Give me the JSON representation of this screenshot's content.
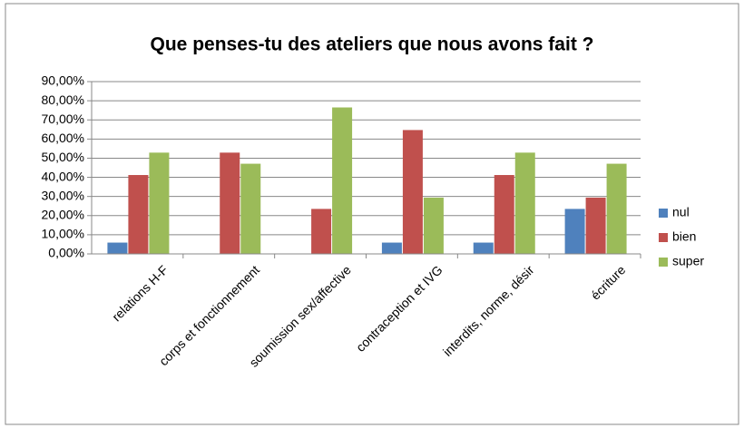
{
  "chart_data": {
    "type": "bar",
    "title": "Que penses-tu des ateliers que nous avons fait ?",
    "categories": [
      "relations H-F",
      "corps et fonctionnement",
      "soumission sex/affective",
      "contraception et IVG",
      "interdits, norme, désir",
      "écriture"
    ],
    "series": [
      {
        "name": "nul",
        "color": "#4f81bd",
        "values": [
          5.9,
          0,
          0,
          5.9,
          5.9,
          23.5
        ]
      },
      {
        "name": "bien",
        "color": "#c0504d",
        "values": [
          41.2,
          52.9,
          23.5,
          64.7,
          41.2,
          29.4
        ]
      },
      {
        "name": "super",
        "color": "#9bbb59",
        "values": [
          52.9,
          47.1,
          76.5,
          29.4,
          52.9,
          47.1
        ]
      }
    ],
    "ylim": [
      0,
      90
    ],
    "yticks": [
      {
        "value": 0,
        "label": "0,00%"
      },
      {
        "value": 10,
        "label": "10,00%"
      },
      {
        "value": 20,
        "label": "20,00%"
      },
      {
        "value": 30,
        "label": "30,00%"
      },
      {
        "value": 40,
        "label": "40,00%"
      },
      {
        "value": 50,
        "label": "50,00%"
      },
      {
        "value": 60,
        "label": "60,00%"
      },
      {
        "value": 70,
        "label": "70,00%"
      },
      {
        "value": 80,
        "label": "80,00%"
      },
      {
        "value": 90,
        "label": "90,00%"
      }
    ],
    "grid": true,
    "legend": "right"
  }
}
